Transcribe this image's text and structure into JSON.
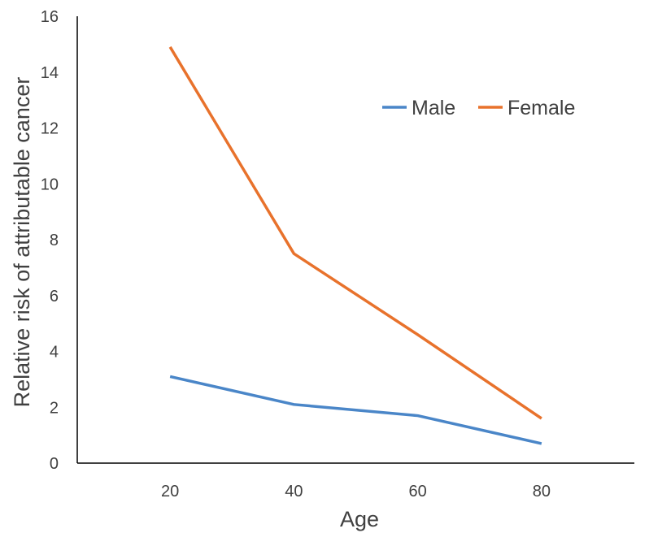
{
  "chart_data": {
    "type": "line",
    "title": "",
    "xlabel": "Age",
    "ylabel": "Relative risk of attributable cancer",
    "x": [
      20,
      40,
      60,
      80
    ],
    "x_tick_labels": [
      "20",
      "40",
      "60",
      "80"
    ],
    "y_tick_labels": [
      "0",
      "2",
      "4",
      "6",
      "8",
      "10",
      "12",
      "14",
      "16"
    ],
    "xlim": [
      5,
      95
    ],
    "ylim": [
      0,
      16
    ],
    "grid": false,
    "legend_position": "top-right",
    "series": [
      {
        "name": "Male",
        "color": "#4A86C8",
        "values": [
          3.1,
          2.1,
          1.7,
          0.7
        ]
      },
      {
        "name": "Female",
        "color": "#E8722C",
        "values": [
          14.9,
          7.5,
          4.6,
          1.6
        ]
      }
    ]
  }
}
